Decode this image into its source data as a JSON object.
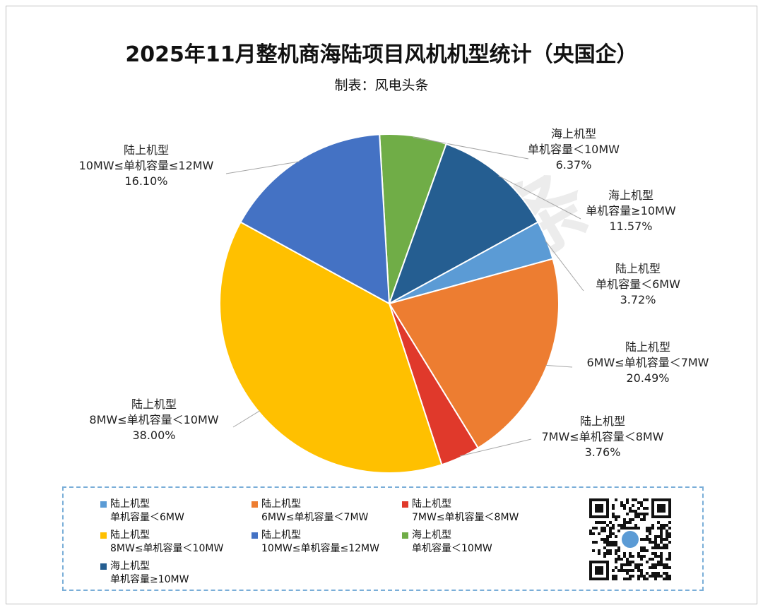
{
  "chart_data": {
    "type": "pie",
    "title": "2025年11月整机商海陆项目风机机型统计（央国企）",
    "subtitle": "制表：风电头条",
    "slices": [
      {
        "line1": "海上机型",
        "line2": "单机容量＜10MW",
        "value": 6.37,
        "label": "6.37%",
        "color": "#70AD47"
      },
      {
        "line1": "海上机型",
        "line2": "单机容量≥10MW",
        "value": 11.57,
        "label": "11.57%",
        "color": "#255E91"
      },
      {
        "line1": "陆上机型",
        "line2": "单机容量＜6MW",
        "value": 3.72,
        "label": "3.72%",
        "color": "#5B9BD5"
      },
      {
        "line1": "陆上机型",
        "line2": "6MW≤单机容量＜7MW",
        "value": 20.49,
        "label": "20.49%",
        "color": "#ED7D31"
      },
      {
        "line1": "陆上机型",
        "line2": "7MW≤单机容量＜8MW",
        "value": 3.76,
        "label": "3.76%",
        "color": "#E0392B"
      },
      {
        "line1": "陆上机型",
        "line2": "8MW≤单机容量＜10MW",
        "value": 38.0,
        "label": "38.00%",
        "color": "#FFC000"
      },
      {
        "line1": "陆上机型",
        "line2": "10MW≤单机容量≤12MW",
        "value": 16.1,
        "label": "16.10%",
        "color": "#4472C4"
      }
    ],
    "legend": [
      {
        "line1": "陆上机型",
        "line2": "单机容量＜6MW",
        "color": "#5B9BD5"
      },
      {
        "line1": "陆上机型",
        "line2": "6MW≤单机容量＜7MW",
        "color": "#ED7D31"
      },
      {
        "line1": "陆上机型",
        "line2": "7MW≤单机容量＜8MW",
        "color": "#E0392B"
      },
      {
        "line1": "陆上机型",
        "line2": "8MW≤单机容量＜10MW",
        "color": "#FFC000"
      },
      {
        "line1": "陆上机型",
        "line2": "10MW≤单机容量≤12MW",
        "color": "#4472C4"
      },
      {
        "line1": "海上机型",
        "line2": "单机容量＜10MW",
        "color": "#70AD47"
      },
      {
        "line1": "海上机型",
        "line2": "单机容量≥10MW",
        "color": "#255E91"
      }
    ]
  },
  "watermark": "风电头条"
}
